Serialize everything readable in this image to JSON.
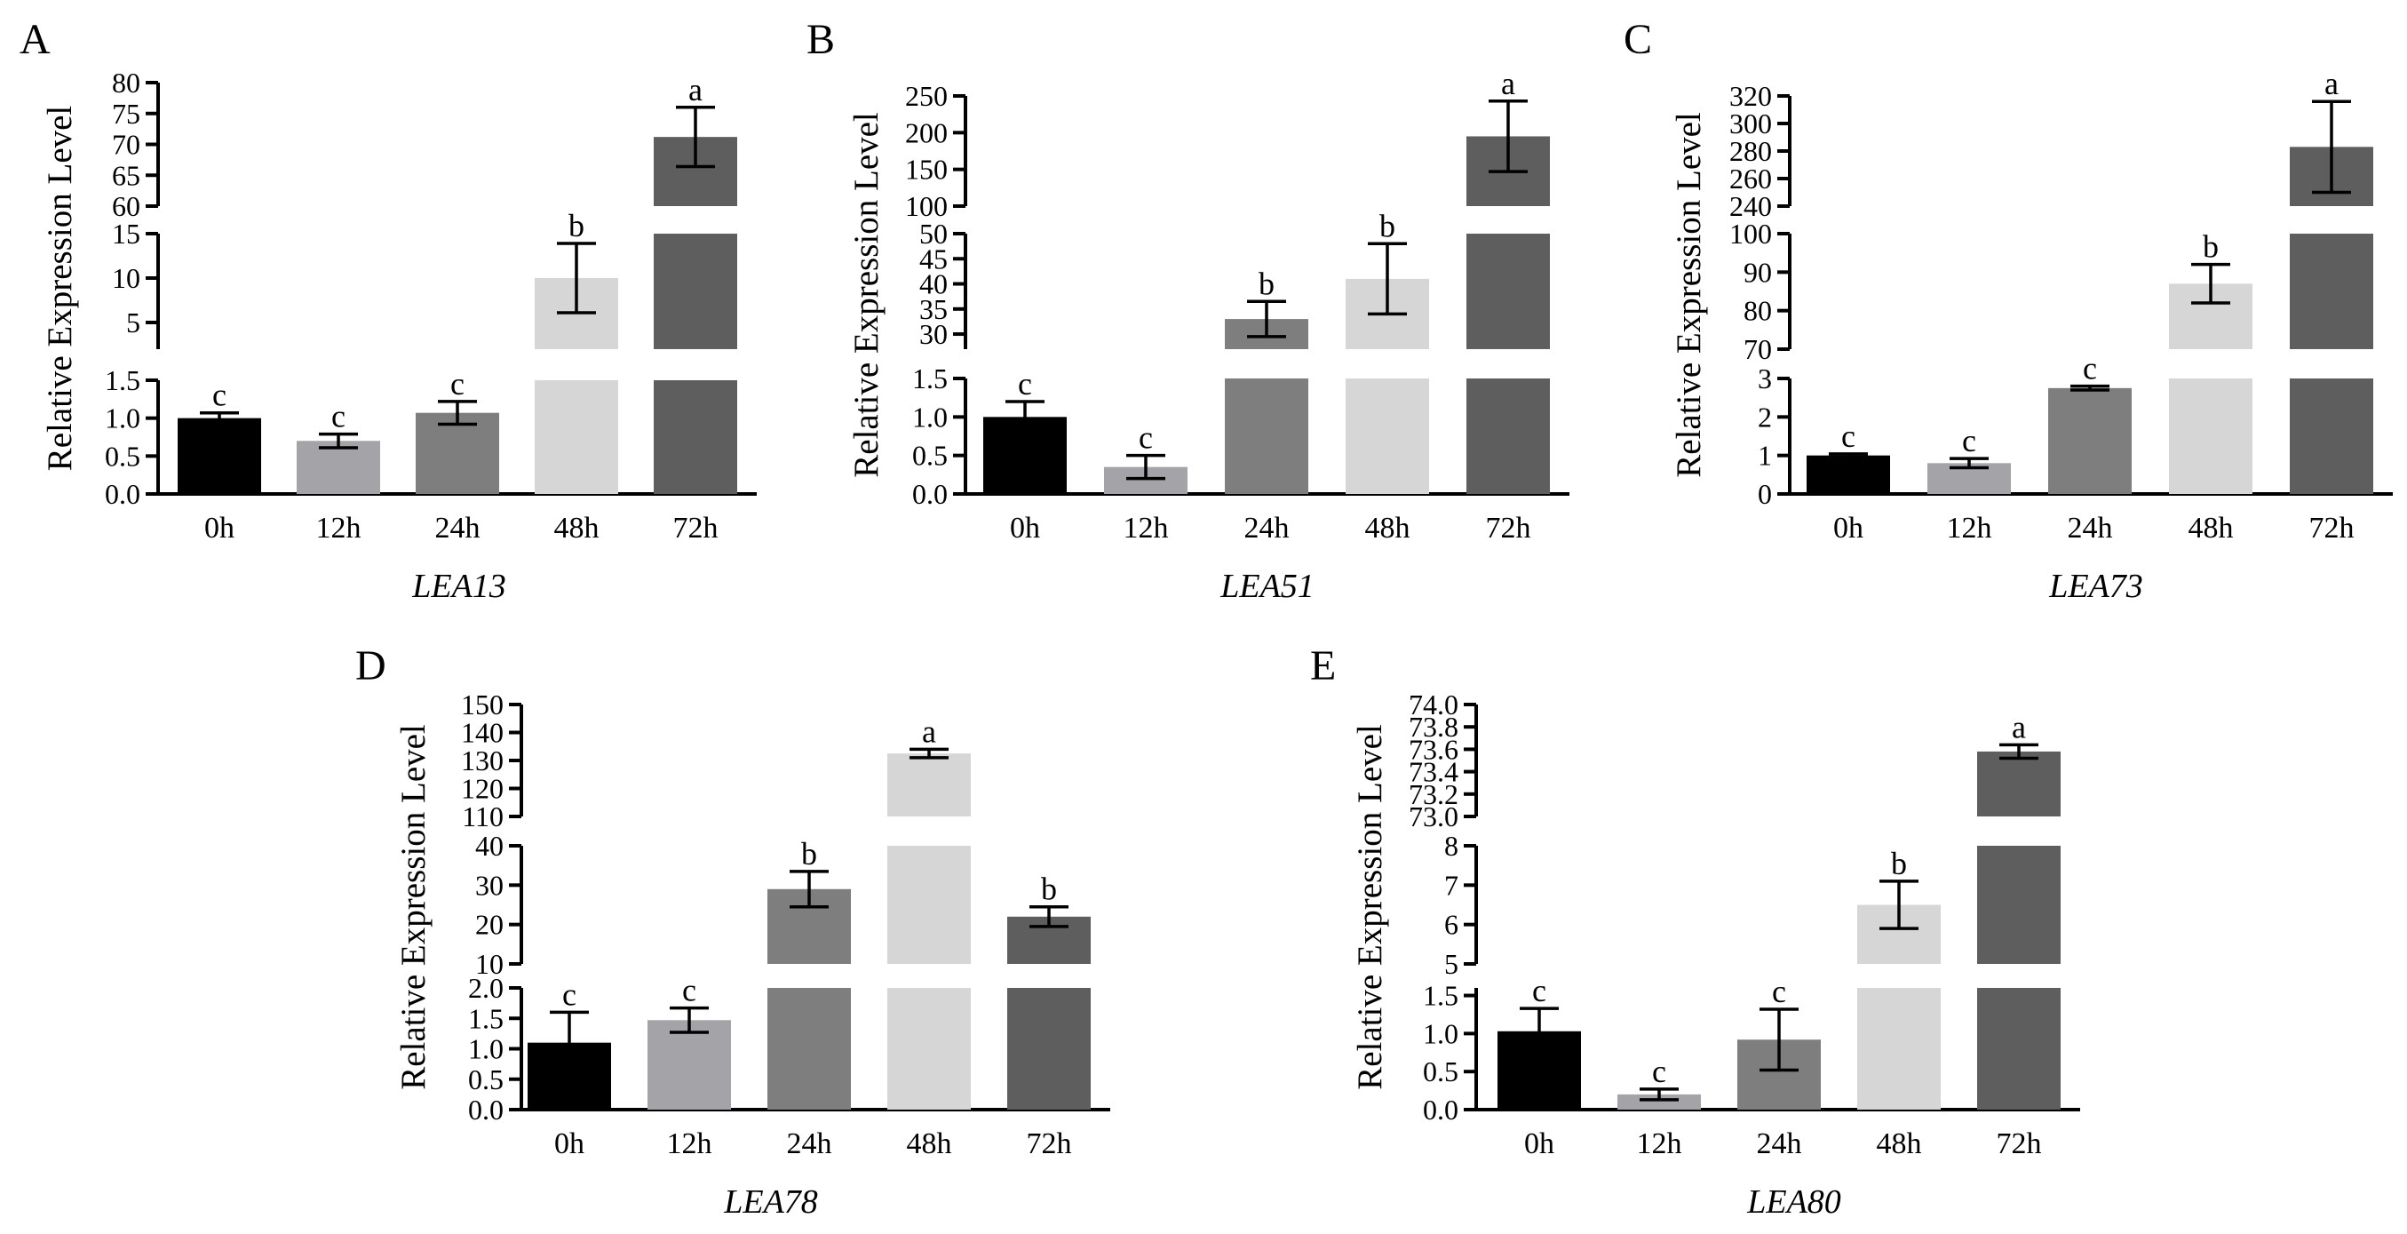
{
  "figure": {
    "categories": [
      "0h",
      "12h",
      "24h",
      "48h",
      "72h"
    ],
    "bar_colors": [
      "#000000",
      "#a3a3a8",
      "#7e7e7e",
      "#d6d6d6",
      "#5e5e5e"
    ]
  },
  "chart_data": [
    {
      "type": "bar",
      "panel": "A",
      "title": "LEA13",
      "xlabel": "LEA13",
      "ylabel": "Relative Expression Level",
      "categories": [
        "0h",
        "12h",
        "24h",
        "48h",
        "72h"
      ],
      "values": [
        1.0,
        0.7,
        1.07,
        10.0,
        71.2
      ],
      "errors": [
        0.07,
        0.09,
        0.15,
        3.9,
        4.8
      ],
      "significance": [
        "c",
        "c",
        "c",
        "b",
        "a"
      ],
      "broken_axis_segments": [
        {
          "ylim": [
            0,
            1.5
          ],
          "ticks": [
            "0.0",
            "0.5",
            "1.0",
            "1.5"
          ]
        },
        {
          "ylim": [
            2,
            15
          ],
          "ticks": [
            "5",
            "10",
            "15"
          ]
        },
        {
          "ylim": [
            60,
            80
          ],
          "ticks": [
            "60",
            "65",
            "70",
            "75",
            "80"
          ]
        }
      ]
    },
    {
      "type": "bar",
      "panel": "B",
      "title": "LEA51",
      "xlabel": "LEA51",
      "ylabel": "Relative Expression Level",
      "categories": [
        "0h",
        "12h",
        "24h",
        "48h",
        "72h"
      ],
      "values": [
        1.0,
        0.35,
        33.0,
        41.0,
        195.0
      ],
      "errors": [
        0.2,
        0.15,
        3.5,
        7.0,
        48.0
      ],
      "significance": [
        "c",
        "c",
        "b",
        "b",
        "a"
      ],
      "broken_axis_segments": [
        {
          "ylim": [
            0,
            1.5
          ],
          "ticks": [
            "0.0",
            "0.5",
            "1.0",
            "1.5"
          ]
        },
        {
          "ylim": [
            27,
            50
          ],
          "ticks": [
            "30",
            "35",
            "40",
            "45",
            "50"
          ]
        },
        {
          "ylim": [
            100,
            250
          ],
          "ticks": [
            "100",
            "150",
            "200",
            "250"
          ]
        }
      ]
    },
    {
      "type": "bar",
      "panel": "C",
      "title": "LEA73",
      "xlabel": "LEA73",
      "ylabel": "Relative Expression Level",
      "categories": [
        "0h",
        "12h",
        "24h",
        "48h",
        "72h"
      ],
      "values": [
        1.0,
        0.8,
        2.75,
        87.0,
        283.0
      ],
      "errors": [
        0.04,
        0.12,
        0.05,
        5.0,
        33.0
      ],
      "significance": [
        "c",
        "c",
        "c",
        "b",
        "a"
      ],
      "broken_axis_segments": [
        {
          "ylim": [
            0,
            3
          ],
          "ticks": [
            "0",
            "1",
            "2",
            "3"
          ]
        },
        {
          "ylim": [
            70,
            100
          ],
          "ticks": [
            "70",
            "80",
            "90",
            "100"
          ]
        },
        {
          "ylim": [
            240,
            320
          ],
          "ticks": [
            "240",
            "260",
            "280",
            "300",
            "320"
          ]
        }
      ]
    },
    {
      "type": "bar",
      "panel": "D",
      "title": "LEA78",
      "xlabel": "LEA78",
      "ylabel": "Relative Expression Level",
      "categories": [
        "0h",
        "12h",
        "24h",
        "48h",
        "72h"
      ],
      "values": [
        1.1,
        1.47,
        29.0,
        132.5,
        22.0
      ],
      "errors": [
        0.5,
        0.2,
        4.5,
        1.5,
        2.5
      ],
      "significance": [
        "c",
        "c",
        "b",
        "a",
        "b"
      ],
      "broken_axis_segments": [
        {
          "ylim": [
            0,
            2
          ],
          "ticks": [
            "0.0",
            "0.5",
            "1.0",
            "1.5",
            "2.0"
          ]
        },
        {
          "ylim": [
            10,
            40
          ],
          "ticks": [
            "10",
            "20",
            "30",
            "40"
          ]
        },
        {
          "ylim": [
            110,
            150
          ],
          "ticks": [
            "110",
            "120",
            "130",
            "140",
            "150"
          ]
        }
      ]
    },
    {
      "type": "bar",
      "panel": "E",
      "title": "LEA80",
      "xlabel": "LEA80",
      "ylabel": "Relative Expression Level",
      "categories": [
        "0h",
        "12h",
        "24h",
        "48h",
        "72h"
      ],
      "values": [
        1.03,
        0.2,
        0.92,
        6.5,
        73.58
      ],
      "errors": [
        0.3,
        0.07,
        0.4,
        0.6,
        0.06
      ],
      "significance": [
        "c",
        "c",
        "c",
        "b",
        "a"
      ],
      "broken_axis_segments": [
        {
          "ylim": [
            0,
            1.6
          ],
          "ticks": [
            "0.0",
            "0.5",
            "1.0",
            "1.5"
          ]
        },
        {
          "ylim": [
            5,
            8
          ],
          "ticks": [
            "5",
            "6",
            "7",
            "8"
          ]
        },
        {
          "ylim": [
            73.0,
            74.0
          ],
          "ticks": [
            "73.0",
            "73.2",
            "73.4",
            "73.6",
            "73.8",
            "74.0"
          ]
        }
      ]
    }
  ]
}
